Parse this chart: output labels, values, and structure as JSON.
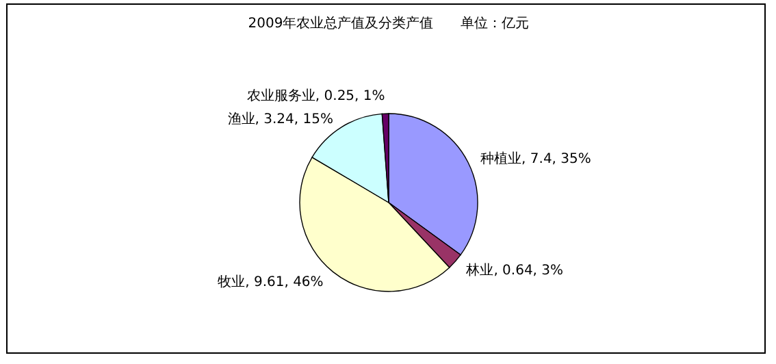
{
  "chart_data": {
    "type": "pie",
    "title": "2009年农业总产值及分类产值　　单位：亿元",
    "categories": [
      "种植业",
      "林业",
      "牧业",
      "渔业",
      "农业服务业"
    ],
    "values": [
      7.4,
      0.64,
      9.61,
      3.24,
      0.25
    ],
    "value_labels": [
      "7.4, 35%",
      "0.64, 3%",
      "9.61, 46%",
      "3.24, 15%",
      "0.25, 1%"
    ],
    "colors": [
      "#9999ff",
      "#993366",
      "#ffffcc",
      "#ccffff",
      "#660066"
    ]
  }
}
